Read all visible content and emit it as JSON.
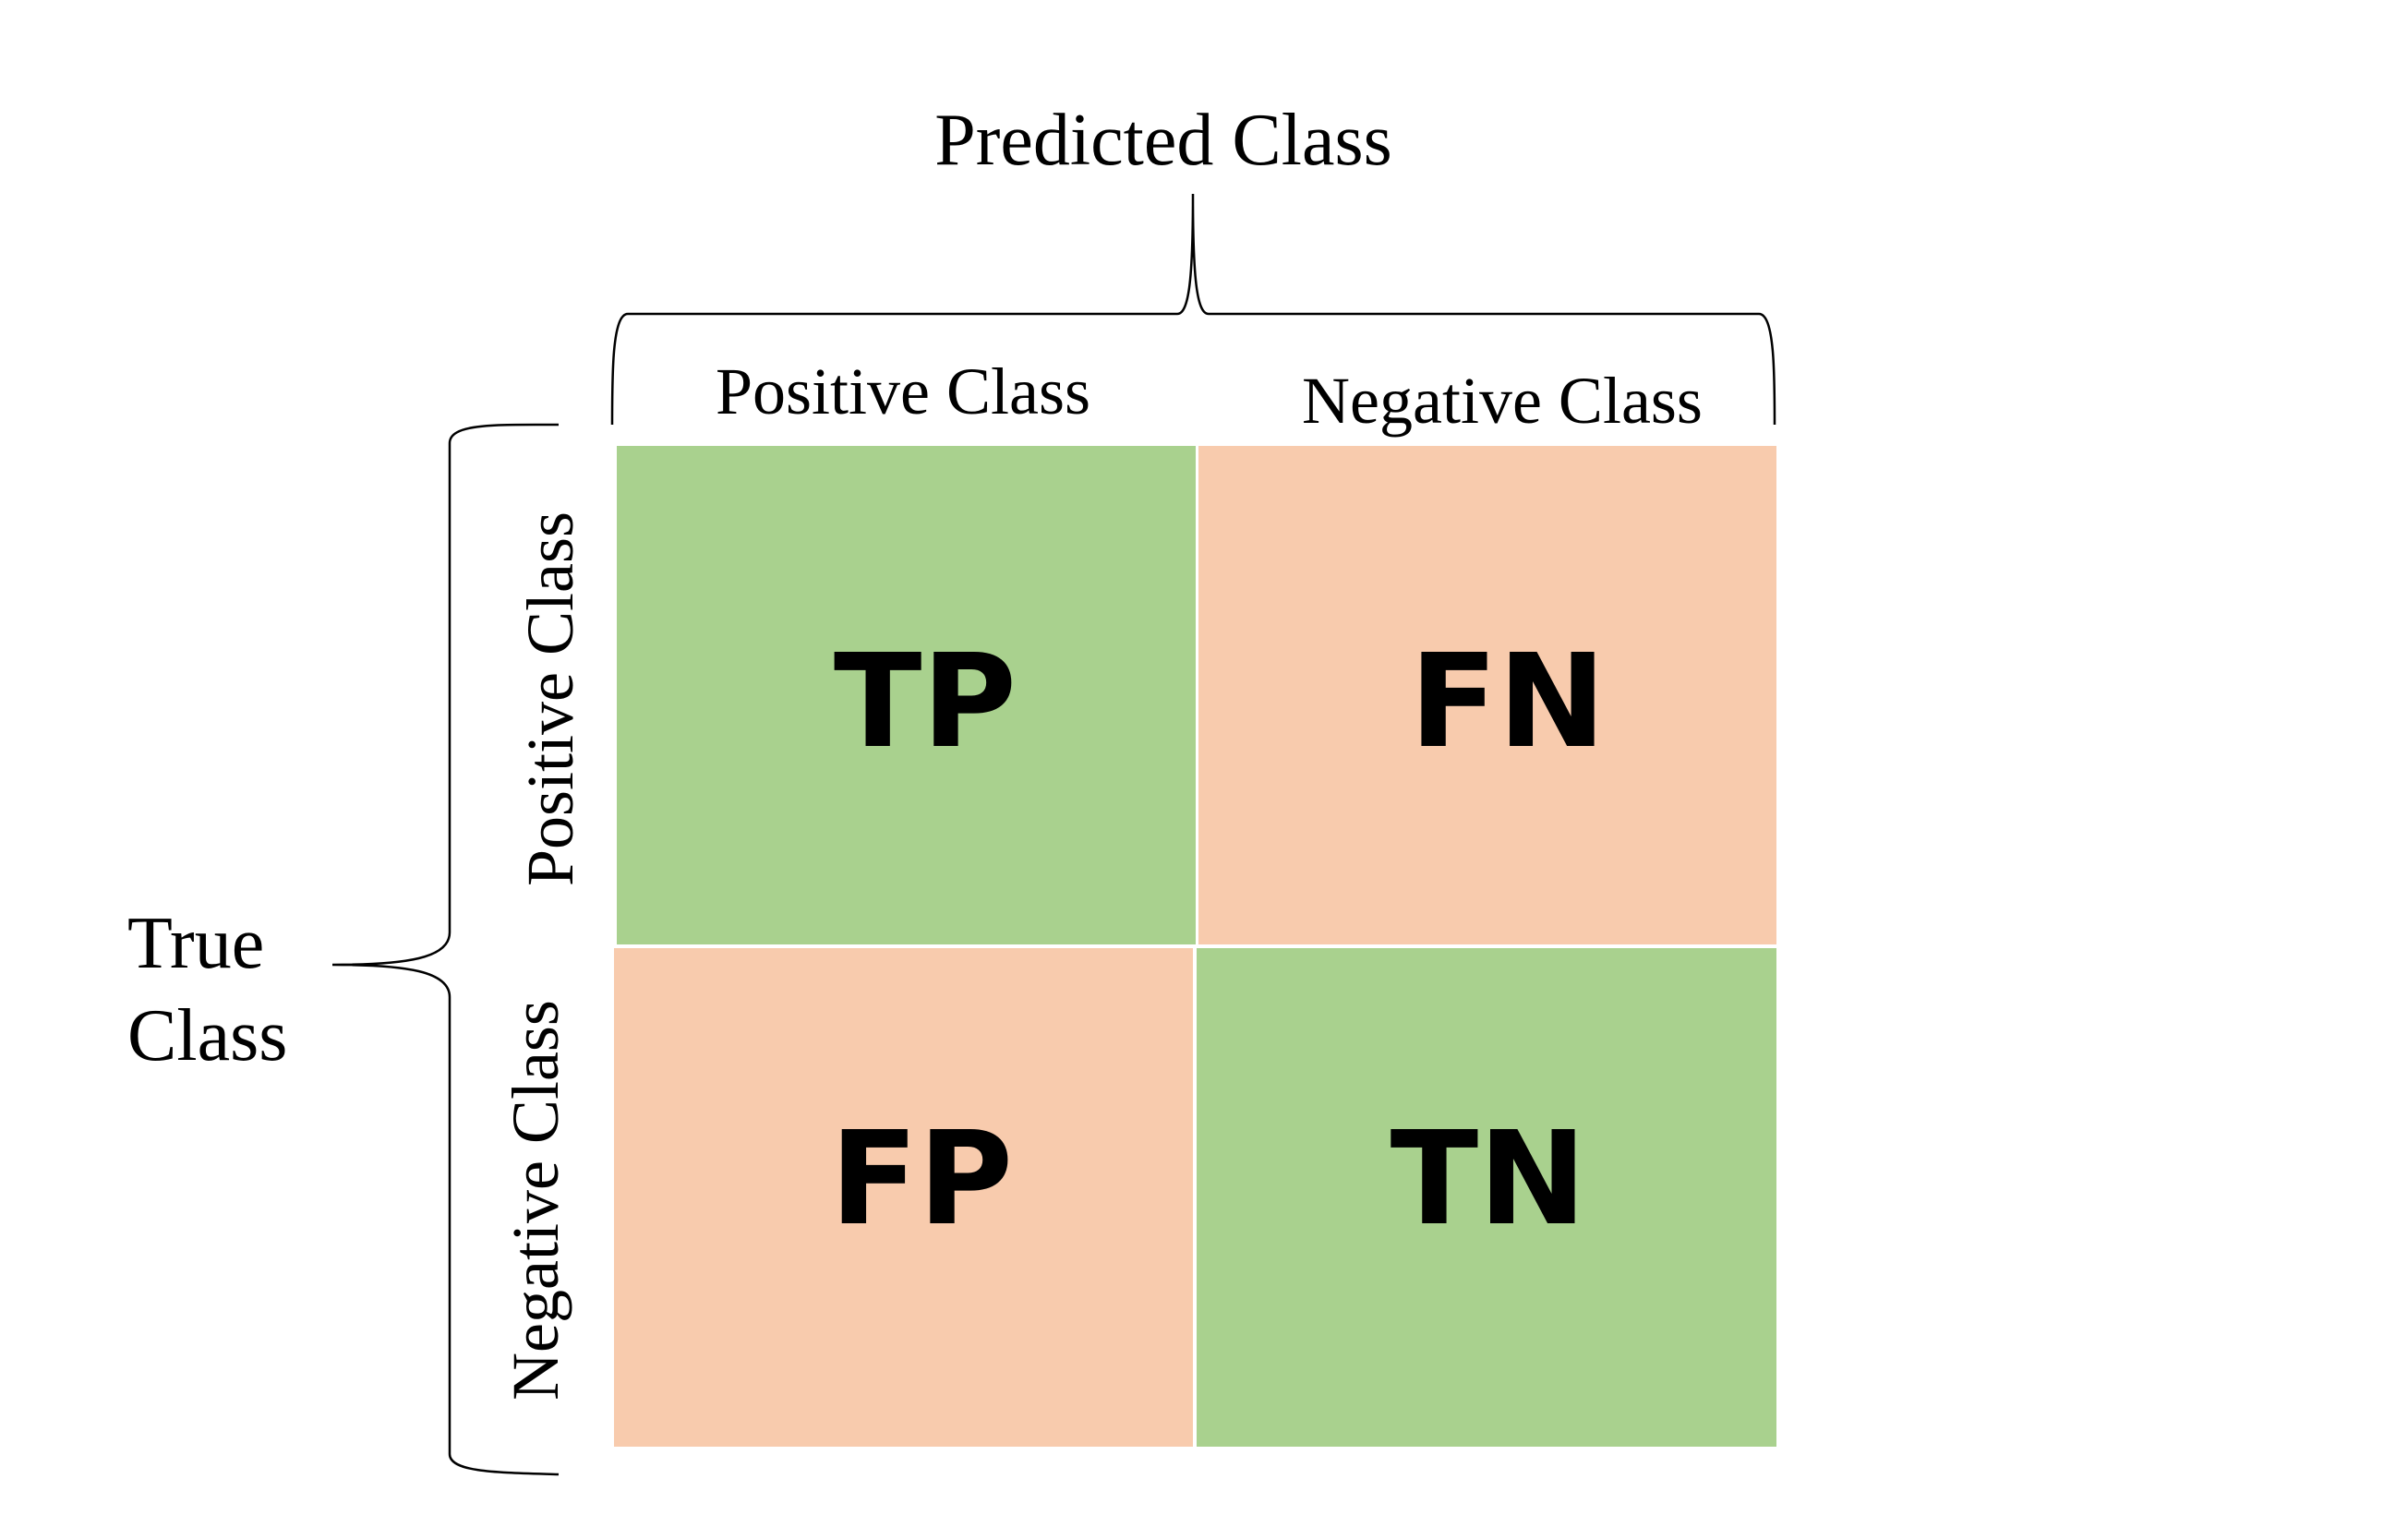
{
  "axes": {
    "predicted_title": "Predicted Class",
    "true_title_line1": "True",
    "true_title_line2": "Class"
  },
  "columns": [
    {
      "label": "Positive Class"
    },
    {
      "label": "Negative Class"
    }
  ],
  "rows": [
    {
      "label": "Positive Class"
    },
    {
      "label": "Negative Class"
    }
  ],
  "cells": [
    {
      "label": "TP",
      "color": "#a9d18e"
    },
    {
      "label": "FN",
      "color": "#f8cbad"
    },
    {
      "label": "FP",
      "color": "#f8cbad"
    },
    {
      "label": "TN",
      "color": "#a9d18e"
    }
  ]
}
